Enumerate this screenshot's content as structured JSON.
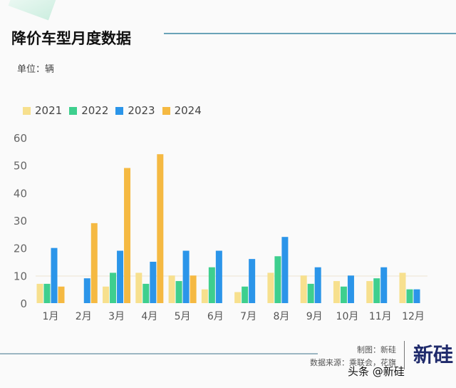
{
  "header": {
    "title": "降价车型月度数据",
    "unit": "单位：辆"
  },
  "footer": {
    "credit": "制图：新硅",
    "source": "数据来源：乘联会，花旗",
    "logo": "新硅",
    "watermark": "头条 @新硅"
  },
  "chart_data": {
    "type": "bar",
    "title": "降价车型月度数据",
    "ylabel": "单位：辆",
    "xlabel": "",
    "ylim": [
      0,
      60
    ],
    "yticks": [
      "0",
      "10",
      "20",
      "30",
      "40",
      "50",
      "60"
    ],
    "legend_position": "top-left",
    "categories": [
      "1月",
      "2月",
      "3月",
      "4月",
      "5月",
      "6月",
      "7月",
      "8月",
      "9月",
      "10月",
      "11月",
      "12月"
    ],
    "series": [
      {
        "name": "2021",
        "color": "#f7e08e",
        "values": [
          7,
          0,
          6,
          11,
          10,
          5,
          4,
          11,
          10,
          8,
          8,
          11
        ]
      },
      {
        "name": "2022",
        "color": "#3ecf8e",
        "values": [
          7,
          0,
          11,
          7,
          8,
          13,
          6,
          17,
          7,
          6,
          9,
          5
        ]
      },
      {
        "name": "2023",
        "color": "#2b95e9",
        "values": [
          20,
          9,
          19,
          15,
          19,
          19,
          16,
          24,
          13,
          10,
          13,
          5
        ]
      },
      {
        "name": "2024",
        "color": "#f5b942",
        "values": [
          6,
          29,
          49,
          54,
          10,
          0,
          0,
          0,
          0,
          0,
          0,
          0
        ]
      }
    ]
  }
}
